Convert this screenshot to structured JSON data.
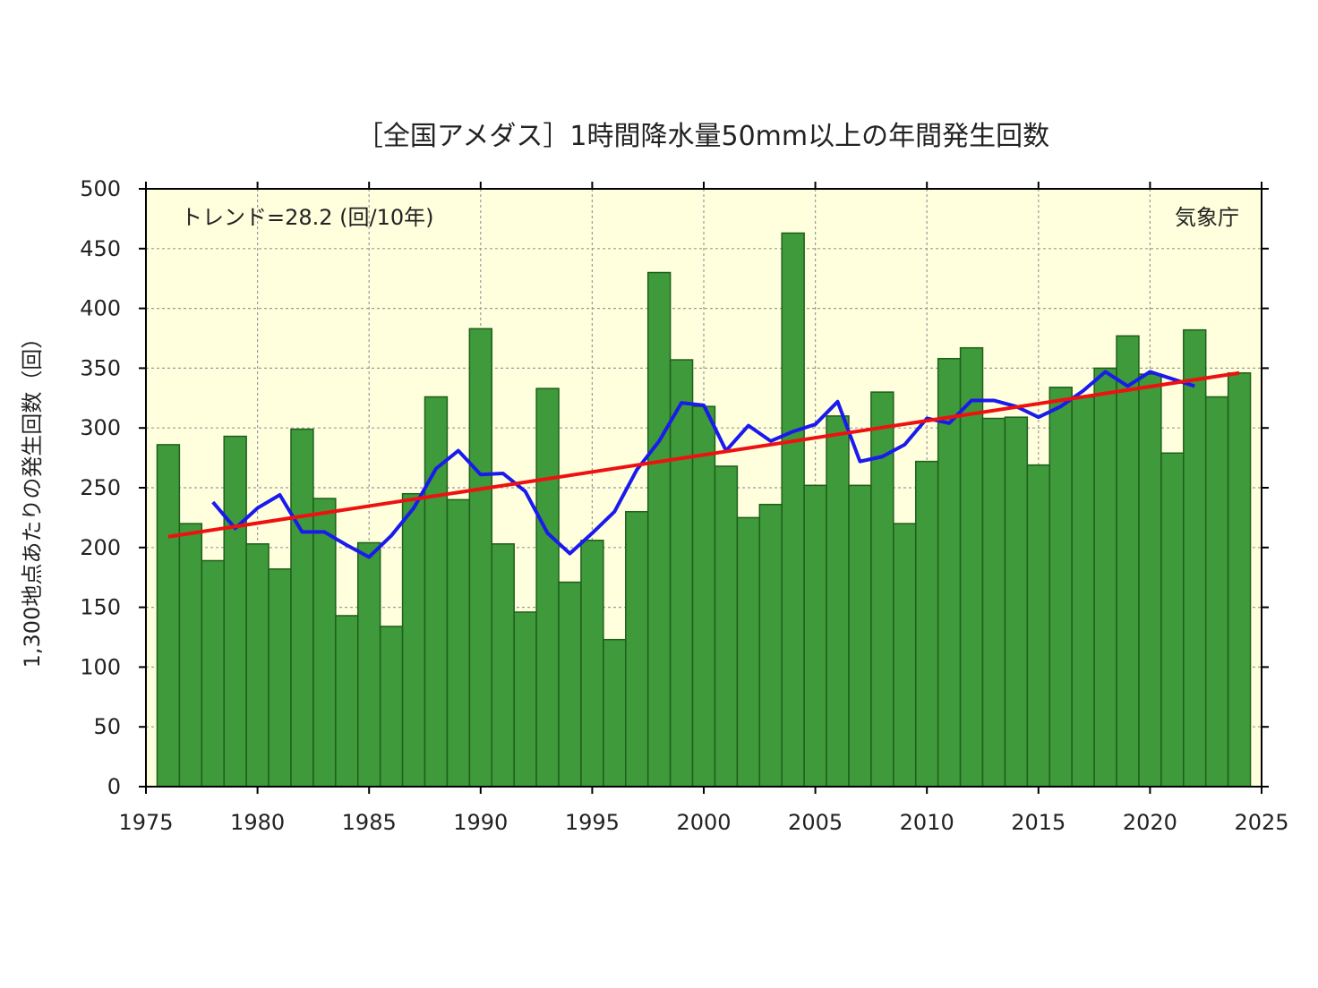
{
  "chart_data": {
    "type": "bar",
    "title": "［全国アメダス］1時間降水量50mm以上の年間発生回数",
    "xlabel": "",
    "ylabel": "1,300地点あたりの発生回数（回）",
    "xlim": [
      1975,
      2025
    ],
    "ylim": [
      0,
      500
    ],
    "x_ticks": [
      1975,
      1980,
      1985,
      1990,
      1995,
      2000,
      2005,
      2010,
      2015,
      2020,
      2025
    ],
    "y_ticks": [
      0,
      50,
      100,
      150,
      200,
      250,
      300,
      350,
      400,
      450,
      500
    ],
    "grid": true,
    "annotations": {
      "trend": "トレンド=28.2 (回/10年)",
      "source": "気象庁"
    },
    "colors": {
      "plot_background": "#ffffdd",
      "bar": "#3e9a3a",
      "bar_edge": "#1f5f1c",
      "moving_average": "#1a1aee",
      "trend_line": "#ee1111"
    },
    "bars": {
      "years": [
        1976,
        1977,
        1978,
        1979,
        1980,
        1981,
        1982,
        1983,
        1984,
        1985,
        1986,
        1987,
        1988,
        1989,
        1990,
        1991,
        1992,
        1993,
        1994,
        1995,
        1996,
        1997,
        1998,
        1999,
        2000,
        2001,
        2002,
        2003,
        2004,
        2005,
        2006,
        2007,
        2008,
        2009,
        2010,
        2011,
        2012,
        2013,
        2014,
        2015,
        2016,
        2017,
        2018,
        2019,
        2020,
        2021,
        2022,
        2023,
        2024
      ],
      "values": [
        286,
        220,
        189,
        293,
        203,
        182,
        299,
        241,
        143,
        204,
        134,
        245,
        326,
        240,
        383,
        203,
        146,
        333,
        171,
        206,
        123,
        230,
        430,
        357,
        318,
        268,
        225,
        236,
        463,
        252,
        310,
        252,
        330,
        220,
        272,
        358,
        367,
        308,
        309,
        269,
        334,
        326,
        350,
        377,
        345,
        279,
        382,
        326,
        346
      ]
    },
    "moving_average": {
      "years": [
        1978,
        1979,
        1980,
        1981,
        1982,
        1983,
        1984,
        1985,
        1986,
        1987,
        1988,
        1989,
        1990,
        1991,
        1992,
        1993,
        1994,
        1995,
        1996,
        1997,
        1998,
        1999,
        2000,
        2001,
        2002,
        2003,
        2004,
        2005,
        2006,
        2007,
        2008,
        2009,
        2010,
        2011,
        2012,
        2013,
        2014,
        2015,
        2016,
        2017,
        2018,
        2019,
        2020,
        2021,
        2022
      ],
      "values": [
        238,
        216,
        233,
        244,
        213,
        213,
        202,
        192,
        210,
        233,
        266,
        281,
        261,
        262,
        247,
        212,
        195,
        212,
        230,
        265,
        289,
        321,
        319,
        281,
        302,
        289,
        297,
        303,
        322,
        272,
        276,
        286,
        308,
        304,
        323,
        323,
        318,
        309,
        318,
        331,
        347,
        335,
        347,
        341,
        335
      ]
    },
    "trend_line": {
      "x": [
        1976,
        2024
      ],
      "y": [
        209,
        346
      ]
    }
  }
}
